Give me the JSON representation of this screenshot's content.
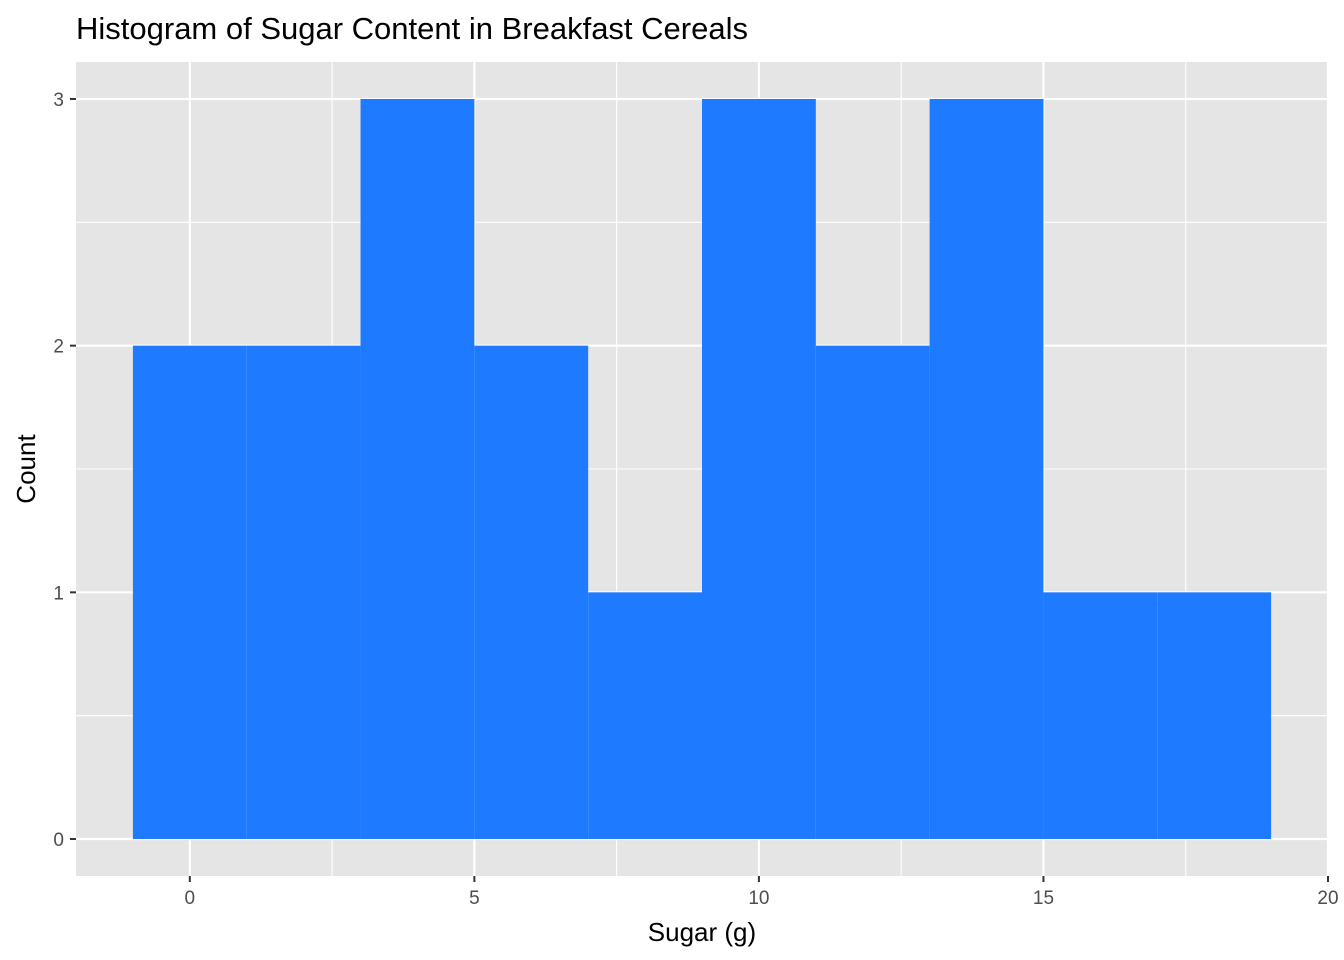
{
  "chart_data": {
    "type": "bar",
    "title": "Histogram of Sugar Content in Breakfast Cereals",
    "xlabel": "Sugar (g)",
    "ylabel": "Count",
    "bins": [
      {
        "x0": -1,
        "x1": 1,
        "count": 2
      },
      {
        "x0": 1,
        "x1": 3,
        "count": 2
      },
      {
        "x0": 3,
        "x1": 5,
        "count": 3
      },
      {
        "x0": 5,
        "x1": 7,
        "count": 2
      },
      {
        "x0": 7,
        "x1": 9,
        "count": 1
      },
      {
        "x0": 9,
        "x1": 11,
        "count": 3
      },
      {
        "x0": 11,
        "x1": 13,
        "count": 2
      },
      {
        "x0": 13,
        "x1": 15,
        "count": 3
      },
      {
        "x0": 15,
        "x1": 17,
        "count": 1
      },
      {
        "x0": 17,
        "x1": 19,
        "count": 1
      }
    ],
    "xlim": [
      -2,
      20
    ],
    "ylim": [
      -0.15,
      3.15
    ],
    "x_ticks": [
      "0",
      "5",
      "10",
      "15",
      "20"
    ],
    "y_ticks": [
      "0",
      "1",
      "2",
      "3"
    ],
    "grid": true,
    "colors": {
      "bar": "#1E7BFF",
      "panel": "#E5E5E5",
      "grid": "#FFFFFF"
    }
  }
}
